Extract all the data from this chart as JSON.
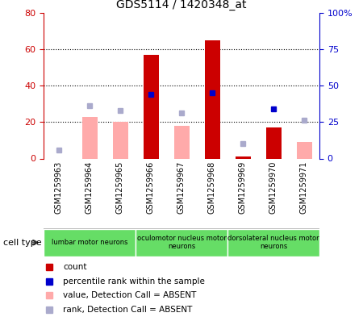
{
  "title": "GDS5114 / 1420348_at",
  "samples": [
    "GSM1259963",
    "GSM1259964",
    "GSM1259965",
    "GSM1259966",
    "GSM1259967",
    "GSM1259968",
    "GSM1259969",
    "GSM1259970",
    "GSM1259971"
  ],
  "count_values": [
    0,
    0,
    0,
    57,
    0,
    65,
    1,
    17,
    0
  ],
  "percentile_rank": [
    null,
    null,
    null,
    44,
    null,
    45,
    null,
    34,
    null
  ],
  "absent_value": [
    null,
    23,
    20,
    null,
    18,
    null,
    null,
    null,
    9
  ],
  "absent_rank": [
    6,
    36,
    33,
    null,
    31,
    null,
    10,
    null,
    26
  ],
  "left_ylim": [
    0,
    80
  ],
  "right_ylim": [
    0,
    100
  ],
  "left_yticks": [
    0,
    20,
    40,
    60,
    80
  ],
  "right_yticks": [
    0,
    25,
    50,
    75,
    100
  ],
  "right_yticklabels": [
    "0",
    "25",
    "50",
    "75",
    "100%"
  ],
  "left_ycolor": "#cc0000",
  "right_ycolor": "#0000cc",
  "count_color": "#cc0000",
  "percentile_color": "#0000cc",
  "absent_value_color": "#ffaaaa",
  "absent_rank_color": "#aaaacc",
  "cell_type_groups": [
    {
      "label": "lumbar motor neurons",
      "samples": [
        0,
        1,
        2
      ],
      "color": "#66dd66"
    },
    {
      "label": "oculomotor nucleus motor\nneurons",
      "samples": [
        3,
        4,
        5
      ],
      "color": "#66dd66"
    },
    {
      "label": "dorsolateral nucleus motor\nneurons",
      "samples": [
        6,
        7,
        8
      ],
      "color": "#66dd66"
    }
  ],
  "cell_type_label": "cell type",
  "legend_items": [
    {
      "label": "count",
      "color": "#cc0000"
    },
    {
      "label": "percentile rank within the sample",
      "color": "#0000cc"
    },
    {
      "label": "value, Detection Call = ABSENT",
      "color": "#ffaaaa"
    },
    {
      "label": "rank, Detection Call = ABSENT",
      "color": "#aaaacc"
    }
  ],
  "background_color": "#ffffff",
  "tick_label_area_color": "#cccccc",
  "grid_color": "#000000"
}
